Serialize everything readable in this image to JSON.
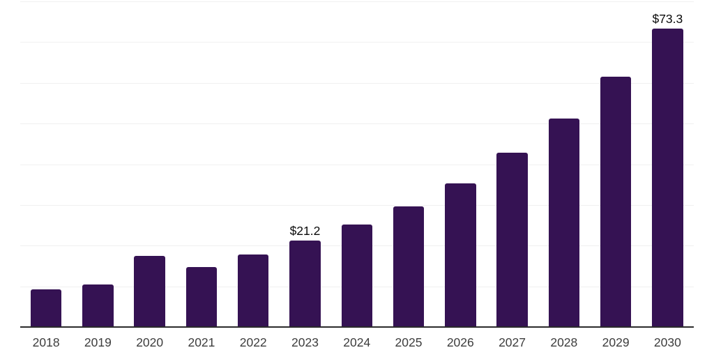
{
  "chart_data": {
    "type": "bar",
    "title": "",
    "xlabel": "",
    "ylabel": "",
    "categories": [
      "2018",
      "2019",
      "2020",
      "2021",
      "2022",
      "2023",
      "2024",
      "2025",
      "2026",
      "2027",
      "2028",
      "2029",
      "2030"
    ],
    "values": [
      9.2,
      10.5,
      17.4,
      14.8,
      17.8,
      21.2,
      25.2,
      29.7,
      35.3,
      42.8,
      51.3,
      61.5,
      73.3
    ],
    "data_labels": [
      "",
      "",
      "",
      "",
      "",
      "$21.2",
      "",
      "",
      "",
      "",
      "",
      "",
      "$73.3"
    ],
    "ylim": [
      0,
      80
    ],
    "gridline_interval": 10,
    "grid_on": true,
    "legend_position": "none",
    "colors": {
      "bar": "#351253",
      "gridline": "#f0f0f0",
      "axis_line": "#2b2b2b",
      "tick_label": "#3d3d3d",
      "data_label": "#0a0a0a",
      "background": "#ffffff"
    }
  }
}
